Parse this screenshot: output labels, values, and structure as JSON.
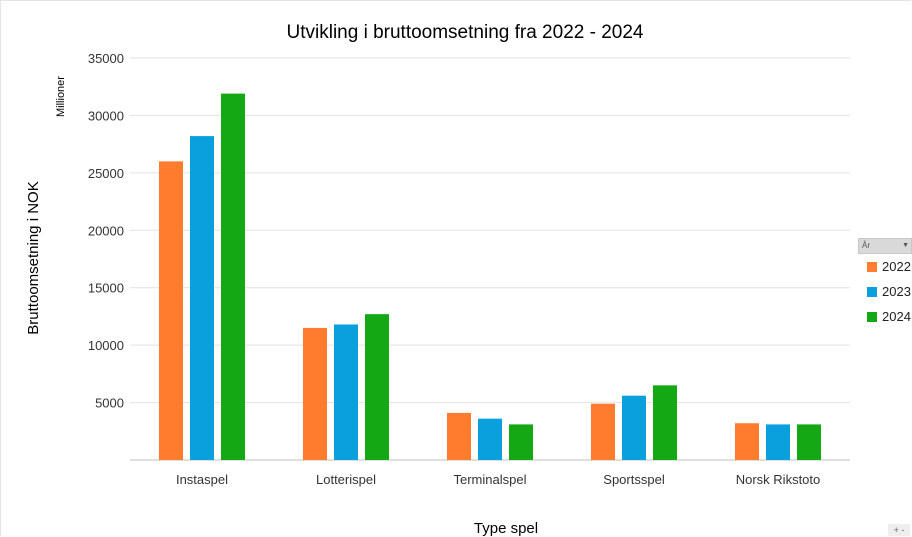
{
  "chart_data": {
    "type": "bar",
    "title": "Utvikling i bruttoomsetning fra 2022 - 2024",
    "xlabel": "Type spel",
    "ylabel": "Bruttoomsetning i NOK",
    "yunit_label": "Millioner",
    "categories": [
      "Instaspel",
      "Lotterispel",
      "Terminalspel",
      "Sportsspel",
      "Norsk Rikstoto"
    ],
    "series": [
      {
        "name": "2022",
        "color": "#ff7b2e",
        "values": [
          26000,
          11500,
          4100,
          4900,
          3200
        ]
      },
      {
        "name": "2023",
        "color": "#0aa0dd",
        "values": [
          28200,
          11800,
          3600,
          5600,
          3100
        ]
      },
      {
        "name": "2024",
        "color": "#14a814",
        "values": [
          31900,
          12700,
          3100,
          6500,
          3100
        ]
      }
    ],
    "yticks": [
      5000,
      10000,
      15000,
      20000,
      25000,
      30000,
      35000
    ],
    "ylim": [
      0,
      35000
    ],
    "grid": true,
    "legend_position": "right"
  },
  "legend": {
    "header": "År",
    "items": [
      "2022",
      "2023",
      "2024"
    ]
  },
  "zoom_control": "+ -"
}
